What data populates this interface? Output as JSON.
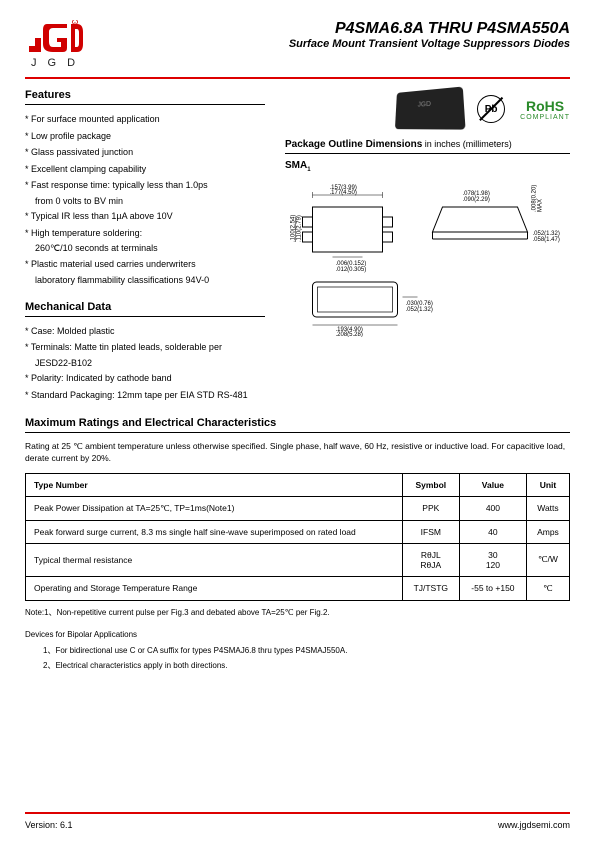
{
  "logo": {
    "text": "J G D"
  },
  "header": {
    "title": "P4SMA6.8A THRU P4SMA550A",
    "subtitle": "Surface Mount Transient Voltage Suppressors Diodes"
  },
  "features": {
    "title": "Features",
    "items": [
      "For surface mounted application",
      "Low profile package",
      "Glass passivated junction",
      "Excellent clamping capability",
      "Fast response time: typically less than 1.0ps",
      "from 0 volts to BV min",
      "Typical IR less than 1µA above 10V",
      "High temperature soldering:",
      "260℃/10 seconds at terminals",
      "Plastic material used carries underwriters",
      "laboratory flammability classifications 94V-0"
    ],
    "sub_indices": [
      5,
      8,
      10
    ]
  },
  "badges": {
    "pb": "Pb",
    "rohs": "RoHS",
    "rohs_sub": "COMPLIANT"
  },
  "package": {
    "title": "Package Outline Dimensions",
    "units": " in inches (millimeters)",
    "label": "SMA",
    "label_sub": "1",
    "dims": {
      "a": ".157(3.99)",
      "b": ".177(4.50)",
      "c": ".078(1.98)",
      "d": ".090(2.29)",
      "e": ".100(2.54)",
      "f": ".110(2.79)",
      "g": ".006(0.152)",
      "h": ".012(0.305)",
      "i": ".052(1.32)",
      "j": ".058(1.47)",
      "k": ".008(0.20)",
      "l": "MAX",
      "m": ".030(0.76)",
      "n": ".052(1.32)",
      "o": ".193(4.90)",
      "p": ".208(5.28)"
    }
  },
  "mechanical": {
    "title": "Mechanical Data",
    "items": [
      "Case: Molded plastic",
      "Terminals: Matte tin plated leads, solderable per",
      "JESD22-B102",
      "Polarity: Indicated by cathode band",
      "Standard Packaging: 12mm tape per EIA STD RS-481"
    ],
    "sub_indices": [
      2
    ]
  },
  "ratings": {
    "title": "Maximum Ratings and Electrical Characteristics",
    "intro": "Rating at 25 ℃ ambient temperature unless otherwise specified. Single phase, half wave, 60 Hz, resistive or inductive load. For capacitive load, derate current by 20%.",
    "headers": [
      "Type Number",
      "Symbol",
      "Value",
      "Unit"
    ],
    "rows": [
      {
        "type": "Peak Power Dissipation at TA=25℃, TP=1ms(Note1)",
        "symbol": "PPK",
        "value": "400",
        "unit": "Watts"
      },
      {
        "type": "Peak forward surge current, 8.3 ms single half sine-wave superimposed on rated load",
        "symbol": "IFSM",
        "value": "40",
        "unit": "Amps"
      },
      {
        "type": "Typical thermal resistance",
        "symbol": "RθJL\nRθJA",
        "value": "30\n120",
        "unit": "℃/W"
      },
      {
        "type": "Operating and Storage Temperature Range",
        "symbol": "TJ/TSTG",
        "value": "-55 to +150",
        "unit": "℃"
      }
    ]
  },
  "note": "Note:1、Non-repetitive current pulse per Fig.3 and debated above TA=25℃ per Fig.2.",
  "bipolar": {
    "title": "Devices for Bipolar Applications",
    "lines": [
      "1、For bidirectional use C or CA suffix for types P4SMAJ6.8 thru types P4SMAJ550A.",
      "2、Electrical characteristics apply in both directions."
    ]
  },
  "footer": {
    "version": "Version: 6.1",
    "url": "www.jgdsemi.com"
  },
  "colors": {
    "brand_red": "#d00000",
    "rohs_green": "#2a8a2a"
  }
}
